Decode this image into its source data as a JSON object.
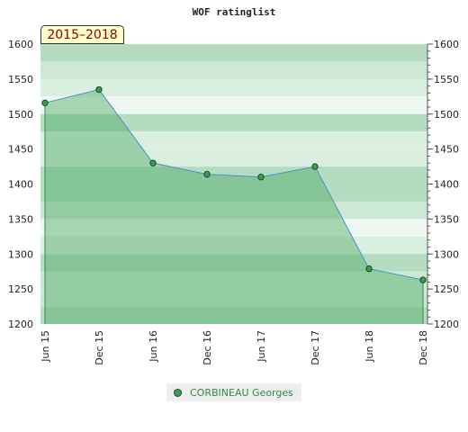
{
  "chart_data": {
    "type": "area",
    "title": "WOF ratinglist",
    "period_label": "2015–2018",
    "categories": [
      "Jun 15",
      "Dec 15",
      "Jun 16",
      "Dec 16",
      "Jun 17",
      "Dec 17",
      "Jun 18",
      "Dec 18"
    ],
    "ylim": [
      1200,
      1600
    ],
    "yticks": [
      1200,
      1250,
      1300,
      1350,
      1400,
      1450,
      1500,
      1550,
      1600
    ],
    "series": [
      {
        "name": "CORBINEAU Georges",
        "values": [
          1516,
          1535,
          1430,
          1414,
          1410,
          1425,
          1279,
          1263
        ]
      }
    ],
    "colors": {
      "line": "#4a90c8",
      "marker": "#3a9c52",
      "fill": "rgba(80,170,100,0.45)"
    },
    "band_colors": [
      "#b3dcc0",
      "#cde9d6",
      "#dbefe1",
      "#eef7f1"
    ],
    "grid": false,
    "legend_position": "bottom"
  }
}
